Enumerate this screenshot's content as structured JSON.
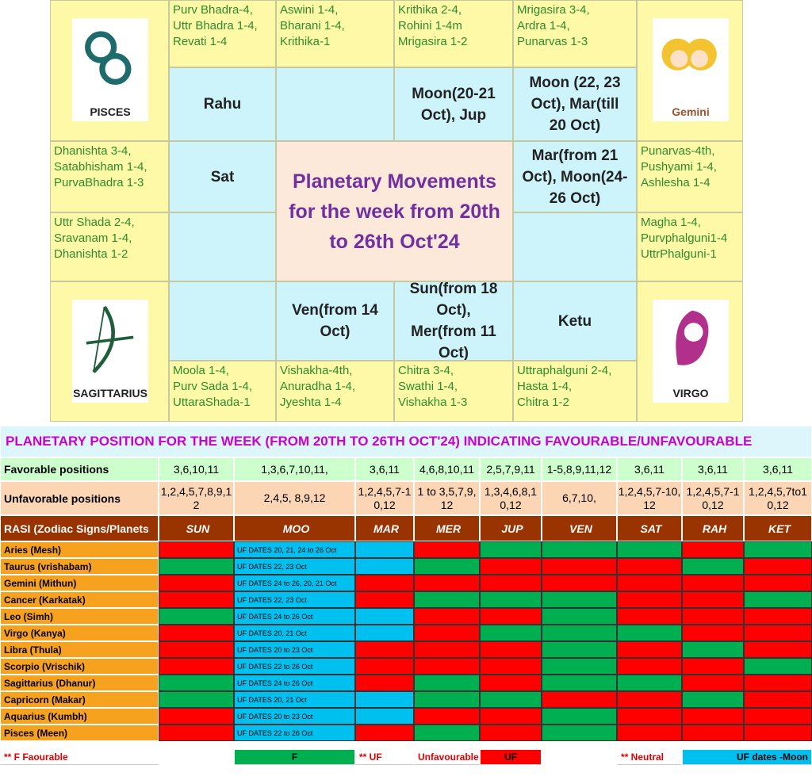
{
  "chart": {
    "title": "Planetary Movements for the week from 20th to 26th Oct'24",
    "signs": [
      "PISCES",
      "Gemini",
      "SAGITTARIUS",
      "VIRGO"
    ],
    "nakshatras": [
      "Purv Bhadra-4,\nUttr Bhadra 1-4,\nRevati 1-4",
      "Aswini 1-4,\nBharani 1-4,\nKrithika-1",
      "Krithika 2-4,\nRohini 1-4m\nMrigasira 1-2",
      "Mrigasira 3-4,\nArdra 1-4,\nPunarvas 1-3",
      "Dhanishta 3-4,\nSatabhisham 1-4,\nPurvaBhadra 1-3",
      "Uttr Shada 2-4,\nSravanam 1-4,\nDhanishta 1-2",
      "Punarvas-4th,\nPushyami 1-4,\nAshlesha 1-4",
      "Magha 1-4,\nPurvphalguni1-4\nUttrPhalguni-1",
      "Moola 1-4,\nPurv Sada 1-4,\nUttaraShada-1",
      "Vishakha-4th,\nAnuradha 1-4,\nJyeshta 1-4",
      "Chitra 3-4,\nSwathi 1-4,\nVishakha 1-3",
      "Uttraphalguni 2-4,\nHasta 1-4,\nChitra 1-2"
    ],
    "planets": [
      "Rahu",
      "Moon(20-21\nOct), Jup",
      "Moon (22, 23\nOct), Mar(till\n20 Oct)",
      "Sat",
      "Mar(from 21\nOct), Moon(24-\n26 Oct)",
      "Ven(from 14\nOct)",
      "Sun(from 18\nOct),\nMer(from 11\nOct)",
      "Ketu"
    ]
  },
  "table": {
    "title": "PLANETARY POSITION FOR THE WEEK (FROM 20TH TO 26TH OCT'24) INDICATING FAVOURABLE/UNFAVOURABLE",
    "favorable": {
      "label": "Favorable positions",
      "values": [
        "3,6,10,11",
        "1,3,6,7,10,11,",
        "3,6,11",
        "4,6,8,10,11",
        "2,5,7,9,11",
        "1-5,8,9,11,12",
        "3,6,11",
        "3,6,11",
        "3,6,11"
      ]
    },
    "unfavorable": {
      "label": "Unfavorable positions",
      "values": [
        "1,2,4,5,7,8,9,12",
        "2,4,5, 8,9,12",
        "1,2,4,5,7-10,12",
        "1 to 3,5,7,9,12",
        "1,3,4,6,8,10,12",
        "6,7,10,",
        "1,2,4,5,7-10,12",
        "1,2,4,5,7-10,12",
        "1,2,4,5,7to10,12"
      ]
    },
    "header": [
      "RASI (Zodiac Signs/Planets",
      "SUN",
      "MOO",
      "MAR",
      "MER",
      "JUP",
      "VEN",
      "SAT",
      "RAH",
      "KET"
    ],
    "rows": [
      {
        "rasi": "Aries (Mesh)",
        "moon_note": "UF DATES 20, 21, 24 to 26 Oct",
        "colors": [
          "#ff0000",
          "#00c0f0",
          "#00c0f0",
          "#ff0000",
          "#00b050",
          "#00b050",
          "#00b050",
          "#ff0000",
          "#00b050"
        ]
      },
      {
        "rasi": "Taurus (vrishabam)",
        "moon_note": "UF DATES 22, 23 Oct",
        "colors": [
          "#00b050",
          "#00c0f0",
          "#00c0f0",
          "#00b050",
          "#ff0000",
          "#ff0000",
          "#ff0000",
          "#00b050",
          "#ff0000"
        ]
      },
      {
        "rasi": "Gemini (Mithun)",
        "moon_note": "UF DATES 24 to 26, 20, 21 Oct",
        "colors": [
          "#ff0000",
          "#00c0f0",
          "#ff0000",
          "#ff0000",
          "#ff0000",
          "#ff0000",
          "#ff0000",
          "#ff0000",
          "#ff0000"
        ]
      },
      {
        "rasi": "Cancer (Karkatak)",
        "moon_note": "UF DATES 22, 23 Oct",
        "colors": [
          "#ff0000",
          "#00c0f0",
          "#ff0000",
          "#00b050",
          "#00b050",
          "#00b050",
          "#ff0000",
          "#ff0000",
          "#00b050"
        ]
      },
      {
        "rasi": "Leo (Simh)",
        "moon_note": "UF DATES 24 to 26 Oct",
        "colors": [
          "#00b050",
          "#00c0f0",
          "#00c0f0",
          "#ff0000",
          "#ff0000",
          "#00b050",
          "#ff0000",
          "#ff0000",
          "#ff0000"
        ]
      },
      {
        "rasi": "Virgo (Kanya)",
        "moon_note": "UF DATES 20, 21 Oct",
        "colors": [
          "#ff0000",
          "#00c0f0",
          "#00c0f0",
          "#ff0000",
          "#00b050",
          "#00b050",
          "#00b050",
          "#ff0000",
          "#ff0000"
        ]
      },
      {
        "rasi": "Libra (Thula)",
        "moon_note": "UF DATES 20 to 23 Oct",
        "colors": [
          "#ff0000",
          "#00c0f0",
          "#ff0000",
          "#ff0000",
          "#ff0000",
          "#00b050",
          "#ff0000",
          "#00b050",
          "#ff0000"
        ]
      },
      {
        "rasi": "Scorpio (Vrischik)",
        "moon_note": "UF DATES  22 to 26  Oct",
        "colors": [
          "#ff0000",
          "#00c0f0",
          "#ff0000",
          "#ff0000",
          "#ff0000",
          "#00b050",
          "#ff0000",
          "#ff0000",
          "#00b050"
        ]
      },
      {
        "rasi": "Sagittarius (Dhanur)",
        "moon_note": "UF DATES 24 to 26 Oct",
        "colors": [
          "#00b050",
          "#00c0f0",
          "#ff0000",
          "#00b050",
          "#ff0000",
          "#00b050",
          "#00b050",
          "#ff0000",
          "#ff0000"
        ]
      },
      {
        "rasi": "Capricorn (Makar)",
        "moon_note": "UF DATES 20, 21 Oct",
        "colors": [
          "#00b050",
          "#00c0f0",
          "#00c0f0",
          "#00b050",
          "#00b050",
          "#ff0000",
          "#ff0000",
          "#00b050",
          "#ff0000"
        ]
      },
      {
        "rasi": "Aquarius (Kumbh)",
        "moon_note": "UF DATES 20 to 23 Oct",
        "colors": [
          "#ff0000",
          "#00c0f0",
          "#00c0f0",
          "#ff0000",
          "#ff0000",
          "#00b050",
          "#ff0000",
          "#ff0000",
          "#ff0000"
        ]
      },
      {
        "rasi": "Pisces (Meen)",
        "moon_note": "UF DATES 22 to 26 Oct",
        "colors": [
          "#ff0000",
          "#00c0f0",
          "#ff0000",
          "#00b050",
          "#ff0000",
          "#00b050",
          "#ff0000",
          "#ff0000",
          "#ff0000"
        ]
      }
    ],
    "legend": [
      "** F   Faourable",
      "F",
      "** UF",
      "Unfavourable",
      "UF",
      "** Neutral",
      "UF dates -Moon"
    ]
  }
}
